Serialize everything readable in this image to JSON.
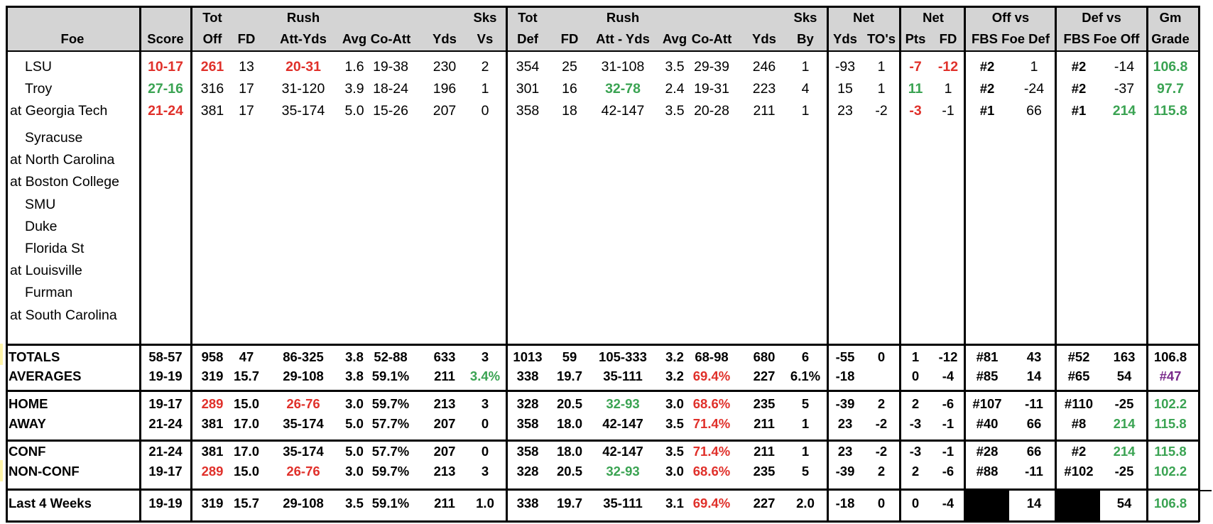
{
  "header": {
    "foe": "Foe",
    "score": "Score",
    "tot_off": [
      "Tot",
      "Off"
    ],
    "fd": "FD",
    "rush_att_yds": [
      "Rush",
      "Att-Yds"
    ],
    "avg": "Avg",
    "co_att": "Co-Att",
    "yds": "Yds",
    "sks_vs": [
      "Sks",
      "Vs"
    ],
    "tot_def": [
      "Tot",
      "Def"
    ],
    "fd2": "FD",
    "rush_att_yds2": [
      "Rush",
      "Att - Yds"
    ],
    "avg2": "Avg",
    "co_att2": "Co-Att",
    "yds2": "Yds",
    "sks_by": [
      "Sks",
      "By"
    ],
    "net1": "Net",
    "net1_yds": "Yds",
    "net1_tos": "TO's",
    "net2": "Net",
    "net2_pts": "Pts",
    "net2_fd": "FD",
    "off_vs": "Off vs",
    "off_vs_sub": "FBS Foe Def",
    "def_vs": "Def vs",
    "def_vs_sub": "FBS Foe Off",
    "gm": "Gm",
    "grade": "Grade"
  },
  "games": [
    {
      "foe": "LSU",
      "score": "10-17",
      "tot_off": "261",
      "fd": "13",
      "rush": "20-31",
      "avg": "1.6",
      "co_att": "19-38",
      "yds": "230",
      "sks_vs": "2",
      "tot_def": "354",
      "fd2": "25",
      "rush2": "31-108",
      "avg2": "3.5",
      "co_att2": "29-39",
      "yds2": "246",
      "sks_by": "1",
      "net_yds": "-93",
      "net_tos": "1",
      "net_pts": "-7",
      "net_fd": "-12",
      "off_rank": "#2",
      "off_val": "1",
      "def_rank": "#2",
      "def_val": "-14",
      "grade": "106.8"
    },
    {
      "foe": "Troy",
      "score": "27-16",
      "tot_off": "316",
      "fd": "17",
      "rush": "31-120",
      "avg": "3.9",
      "co_att": "18-24",
      "yds": "196",
      "sks_vs": "1",
      "tot_def": "301",
      "fd2": "16",
      "rush2": "32-78",
      "avg2": "2.4",
      "co_att2": "19-31",
      "yds2": "223",
      "sks_by": "4",
      "net_yds": "15",
      "net_tos": "1",
      "net_pts": "11",
      "net_fd": "1",
      "off_rank": "#2",
      "off_val": "-24",
      "def_rank": "#2",
      "def_val": "-37",
      "grade": "97.7"
    },
    {
      "foe": "at Georgia Tech",
      "score": "21-24",
      "tot_off": "381",
      "fd": "17",
      "rush": "35-174",
      "avg": "5.0",
      "co_att": "15-26",
      "yds": "207",
      "sks_vs": "0",
      "tot_def": "358",
      "fd2": "18",
      "rush2": "42-147",
      "avg2": "3.5",
      "co_att2": "20-28",
      "yds2": "211",
      "sks_by": "1",
      "net_yds": "23",
      "net_tos": "-2",
      "net_pts": "-3",
      "net_fd": "-1",
      "off_rank": "#1",
      "off_val": "66",
      "def_rank": "#1",
      "def_val": "214",
      "grade": "115.8"
    }
  ],
  "future": [
    "Syracuse",
    "at North Carolina",
    "at Boston College",
    "SMU",
    "Duke",
    "Florida St",
    "at Louisville",
    "Furman",
    "at South Carolina"
  ],
  "summary": [
    {
      "label": "TOTALS",
      "score": "58-57",
      "tot_off": "958",
      "fd": "47",
      "rush": "86-325",
      "avg": "3.8",
      "co_att": "52-88",
      "yds": "633",
      "sks_vs": "3",
      "tot_def": "1013",
      "fd2": "59",
      "rush2": "105-333",
      "avg2": "3.2",
      "co_att2": "68-98",
      "yds2": "680",
      "sks_by": "6",
      "net_yds": "-55",
      "net_tos": "0",
      "net_pts": "1",
      "net_fd": "-12",
      "off_rank": "#81",
      "off_val": "43",
      "def_rank": "#52",
      "def_val": "163",
      "grade": "106.8"
    },
    {
      "label": "AVERAGES",
      "score": "19-19",
      "tot_off": "319",
      "fd": "15.7",
      "rush": "29-108",
      "avg": "3.8",
      "co_att": "59.1%",
      "yds": "211",
      "sks_vs": "3.4%",
      "tot_def": "338",
      "fd2": "19.7",
      "rush2": "35-111",
      "avg2": "3.2",
      "co_att2": "69.4%",
      "yds2": "227",
      "sks_by": "6.1%",
      "net_yds": "-18",
      "net_tos": "",
      "net_pts": "0",
      "net_fd": "-4",
      "off_rank": "#85",
      "off_val": "14",
      "def_rank": "#65",
      "def_val": "54",
      "grade": "#47"
    },
    {
      "label": "HOME",
      "score": "19-17",
      "tot_off": "289",
      "fd": "15.0",
      "rush": "26-76",
      "avg": "3.0",
      "co_att": "59.7%",
      "yds": "213",
      "sks_vs": "3",
      "tot_def": "328",
      "fd2": "20.5",
      "rush2": "32-93",
      "avg2": "3.0",
      "co_att2": "68.6%",
      "yds2": "235",
      "sks_by": "5",
      "net_yds": "-39",
      "net_tos": "2",
      "net_pts": "2",
      "net_fd": "-6",
      "off_rank": "#107",
      "off_val": "-11",
      "def_rank": "#110",
      "def_val": "-25",
      "grade": "102.2"
    },
    {
      "label": "AWAY",
      "score": "21-24",
      "tot_off": "381",
      "fd": "17.0",
      "rush": "35-174",
      "avg": "5.0",
      "co_att": "57.7%",
      "yds": "207",
      "sks_vs": "0",
      "tot_def": "358",
      "fd2": "18.0",
      "rush2": "42-147",
      "avg2": "3.5",
      "co_att2": "71.4%",
      "yds2": "211",
      "sks_by": "1",
      "net_yds": "23",
      "net_tos": "-2",
      "net_pts": "-3",
      "net_fd": "-1",
      "off_rank": "#40",
      "off_val": "66",
      "def_rank": "#8",
      "def_val": "214",
      "grade": "115.8"
    },
    {
      "label": "CONF",
      "score": "21-24",
      "tot_off": "381",
      "fd": "17.0",
      "rush": "35-174",
      "avg": "5.0",
      "co_att": "57.7%",
      "yds": "207",
      "sks_vs": "0",
      "tot_def": "358",
      "fd2": "18.0",
      "rush2": "42-147",
      "avg2": "3.5",
      "co_att2": "71.4%",
      "yds2": "211",
      "sks_by": "1",
      "net_yds": "23",
      "net_tos": "-2",
      "net_pts": "-3",
      "net_fd": "-1",
      "off_rank": "#28",
      "off_val": "66",
      "def_rank": "#2",
      "def_val": "214",
      "grade": "115.8"
    },
    {
      "label": "NON-CONF",
      "score": "19-17",
      "tot_off": "289",
      "fd": "15.0",
      "rush": "26-76",
      "avg": "3.0",
      "co_att": "59.7%",
      "yds": "213",
      "sks_vs": "3",
      "tot_def": "328",
      "fd2": "20.5",
      "rush2": "32-93",
      "avg2": "3.0",
      "co_att2": "68.6%",
      "yds2": "235",
      "sks_by": "5",
      "net_yds": "-39",
      "net_tos": "2",
      "net_pts": "2",
      "net_fd": "-6",
      "off_rank": "#88",
      "off_val": "-11",
      "def_rank": "#102",
      "def_val": "-25",
      "grade": "102.2"
    },
    {
      "label": "Last 4 Weeks",
      "score": "19-19",
      "tot_off": "319",
      "fd": "15.7",
      "rush": "29-108",
      "avg": "3.5",
      "co_att": "59.1%",
      "yds": "211",
      "sks_vs": "1.0",
      "tot_def": "338",
      "fd2": "19.7",
      "rush2": "35-111",
      "avg2": "3.1",
      "co_att2": "69.4%",
      "yds2": "227",
      "sks_by": "2.0",
      "net_yds": "-18",
      "net_tos": "0",
      "net_pts": "0",
      "net_fd": "-4",
      "off_rank": "",
      "off_val": "14",
      "def_rank": "",
      "def_val": "54",
      "grade": "106.8"
    }
  ],
  "colors": {
    "red": "#e0302a",
    "green": "#3aa352",
    "purple": "#7a2b8c",
    "header_bg": "#d4d4d4"
  }
}
